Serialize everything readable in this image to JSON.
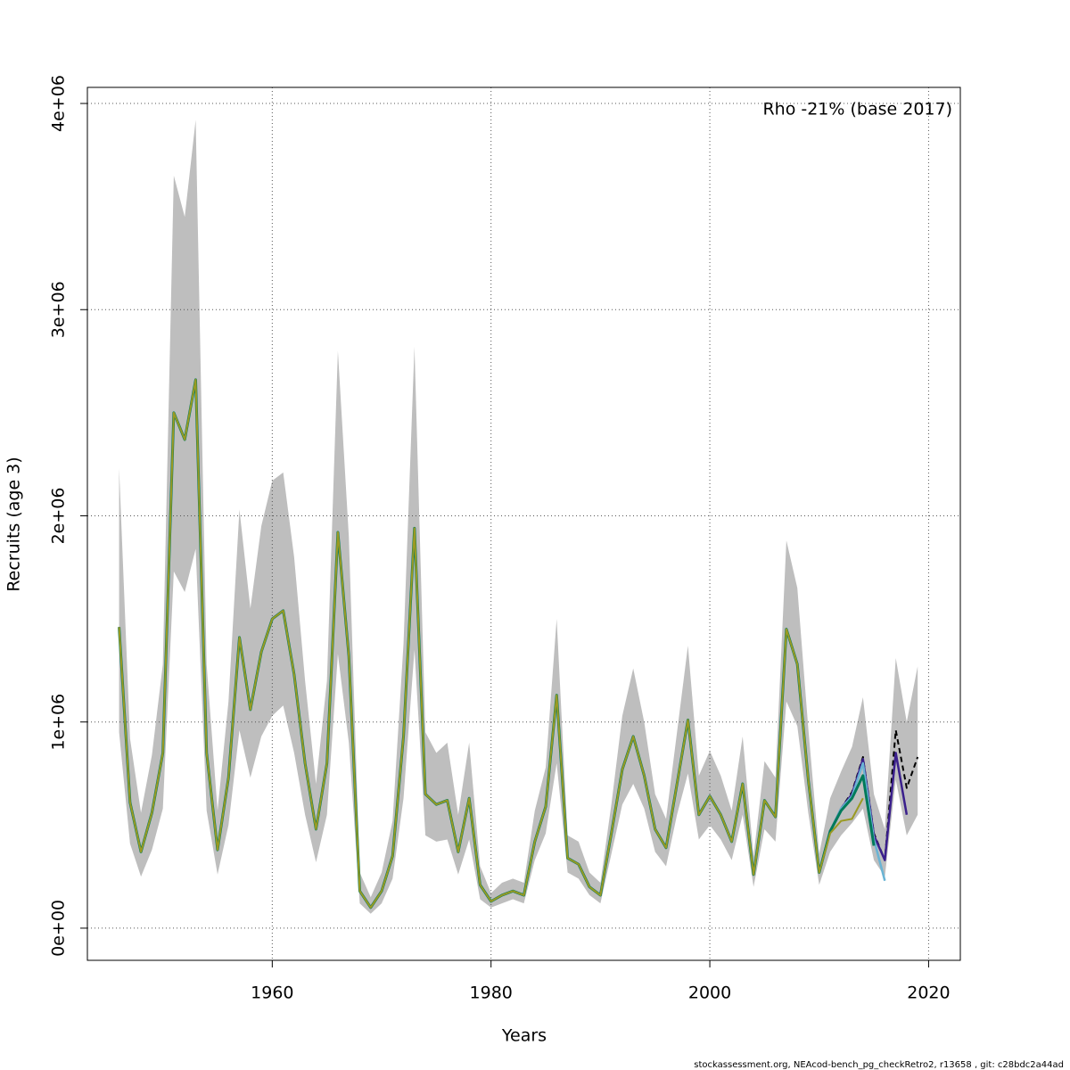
{
  "chart_data": {
    "type": "line",
    "ylabel": "Recruits (age 3)",
    "xlabel": "Years",
    "annotation": "Rho -21% (base 2017)",
    "footer": "stockassessment.org, NEAcod-bench_pg_checkRetro2, r13658 , git: c28bdc2a44ad",
    "grid": true,
    "xlim": [
      1943.1,
      2022.9
    ],
    "xticks": [
      1960,
      1980,
      2000,
      2020
    ],
    "ylim": [
      -156000,
      4078000
    ],
    "yticks": [
      {
        "value": 0,
        "label": "0e+00"
      },
      {
        "value": 1000000,
        "label": "1e+06"
      },
      {
        "value": 2000000,
        "label": "2e+06"
      },
      {
        "value": 3000000,
        "label": "3e+06"
      },
      {
        "value": 4000000,
        "label": "4e+06"
      }
    ],
    "x": [
      1946,
      1947,
      1948,
      1949,
      1950,
      1951,
      1952,
      1953,
      1954,
      1955,
      1956,
      1957,
      1958,
      1959,
      1960,
      1961,
      1962,
      1963,
      1964,
      1965,
      1966,
      1967,
      1968,
      1969,
      1970,
      1971,
      1972,
      1973,
      1974,
      1975,
      1976,
      1977,
      1978,
      1979,
      1980,
      1981,
      1982,
      1983,
      1984,
      1985,
      1986,
      1987,
      1988,
      1989,
      1990,
      1991,
      1992,
      1993,
      1994,
      1995,
      1996,
      1997,
      1998,
      1999,
      2000,
      2001,
      2002,
      2003,
      2004,
      2005,
      2006,
      2007,
      2008,
      2009,
      2010,
      2011,
      2012,
      2013,
      2014,
      2015,
      2016,
      2017,
      2018,
      2019
    ],
    "band": {
      "color": "#bebebe",
      "upper": [
        2230000,
        920000,
        560000,
        840000,
        1280000,
        3650000,
        3450000,
        3920000,
        1280000,
        570000,
        1100000,
        2030000,
        1550000,
        1950000,
        2170000,
        2210000,
        1800000,
        1200000,
        700000,
        1200000,
        2800000,
        1900000,
        270000,
        150000,
        270000,
        520000,
        1380000,
        2820000,
        950000,
        850000,
        900000,
        550000,
        900000,
        300000,
        170000,
        220000,
        240000,
        220000,
        570000,
        780000,
        1500000,
        450000,
        420000,
        270000,
        220000,
        600000,
        1030000,
        1260000,
        1000000,
        650000,
        530000,
        950000,
        1370000,
        740000,
        860000,
        740000,
        570000,
        930000,
        350000,
        810000,
        730000,
        1880000,
        1650000,
        970000,
        360000,
        630000,
        760000,
        880000,
        1120000,
        650000,
        480000,
        1310000,
        1000000,
        1270000
      ],
      "lower": [
        950000,
        410000,
        250000,
        380000,
        580000,
        1730000,
        1630000,
        1840000,
        570000,
        260000,
        500000,
        960000,
        730000,
        930000,
        1030000,
        1080000,
        850000,
        550000,
        320000,
        550000,
        1330000,
        900000,
        120000,
        70000,
        120000,
        240000,
        630000,
        1350000,
        450000,
        420000,
        430000,
        260000,
        430000,
        140000,
        100000,
        120000,
        140000,
        120000,
        330000,
        460000,
        800000,
        270000,
        240000,
        160000,
        120000,
        360000,
        600000,
        700000,
        580000,
        370000,
        300000,
        550000,
        750000,
        430000,
        500000,
        430000,
        330000,
        550000,
        200000,
        480000,
        420000,
        1100000,
        980000,
        560000,
        210000,
        370000,
        450000,
        510000,
        580000,
        330000,
        250000,
        720000,
        450000,
        550000
      ]
    },
    "series": [
      {
        "color": "#000000",
        "dashed": true,
        "width": 2,
        "values": [
          1460000,
          610000,
          370000,
          560000,
          850000,
          2500000,
          2370000,
          2660000,
          850000,
          380000,
          730000,
          1410000,
          1060000,
          1340000,
          1500000,
          1540000,
          1230000,
          800000,
          480000,
          800000,
          1920000,
          1320000,
          180000,
          100000,
          180000,
          350000,
          930000,
          1940000,
          650000,
          600000,
          620000,
          370000,
          630000,
          210000,
          130000,
          160000,
          180000,
          160000,
          420000,
          590000,
          1130000,
          340000,
          310000,
          200000,
          160000,
          460000,
          770000,
          930000,
          740000,
          480000,
          390000,
          700000,
          1010000,
          550000,
          640000,
          550000,
          420000,
          700000,
          260000,
          620000,
          540000,
          1450000,
          1280000,
          720000,
          270000,
          470000,
          580000,
          660000,
          830000,
          460000,
          330000,
          960000,
          680000,
          830000
        ]
      },
      {
        "color": "#3a1f8c",
        "dashed": false,
        "width": 2.5,
        "values": [
          null,
          null,
          null,
          null,
          null,
          null,
          null,
          null,
          null,
          null,
          null,
          null,
          null,
          null,
          null,
          null,
          null,
          null,
          null,
          null,
          null,
          null,
          null,
          null,
          null,
          null,
          null,
          null,
          null,
          null,
          null,
          null,
          null,
          null,
          null,
          null,
          null,
          null,
          null,
          null,
          null,
          null,
          null,
          null,
          null,
          null,
          null,
          null,
          null,
          null,
          null,
          null,
          null,
          null,
          null,
          null,
          null,
          null,
          null,
          null,
          null,
          null,
          null,
          null,
          270000,
          470000,
          580000,
          650000,
          820000,
          450000,
          330000,
          850000,
          550000,
          null
        ]
      },
      {
        "color": "#6ab4d4",
        "dashed": false,
        "width": 2.5,
        "values": [
          null,
          null,
          null,
          null,
          null,
          null,
          null,
          null,
          null,
          null,
          null,
          null,
          null,
          null,
          null,
          null,
          null,
          null,
          null,
          null,
          null,
          null,
          null,
          null,
          null,
          null,
          null,
          null,
          null,
          null,
          null,
          null,
          null,
          null,
          null,
          null,
          null,
          null,
          null,
          null,
          null,
          null,
          null,
          null,
          null,
          null,
          null,
          null,
          null,
          null,
          null,
          null,
          null,
          null,
          null,
          null,
          null,
          null,
          null,
          null,
          null,
          null,
          null,
          null,
          270000,
          470000,
          580000,
          640000,
          800000,
          430000,
          230000,
          null,
          null,
          null
        ]
      },
      {
        "color": "#007a5a",
        "dashed": false,
        "width": 3,
        "values": [
          1460000,
          610000,
          370000,
          560000,
          850000,
          2500000,
          2370000,
          2660000,
          850000,
          380000,
          730000,
          1410000,
          1060000,
          1340000,
          1500000,
          1540000,
          1230000,
          800000,
          480000,
          800000,
          1920000,
          1320000,
          180000,
          100000,
          180000,
          350000,
          930000,
          1940000,
          650000,
          600000,
          620000,
          370000,
          630000,
          210000,
          130000,
          160000,
          180000,
          160000,
          420000,
          590000,
          1130000,
          340000,
          310000,
          200000,
          160000,
          460000,
          770000,
          930000,
          740000,
          480000,
          390000,
          700000,
          1010000,
          550000,
          640000,
          550000,
          420000,
          700000,
          260000,
          620000,
          540000,
          1450000,
          1280000,
          720000,
          270000,
          470000,
          570000,
          630000,
          740000,
          400000,
          null,
          null,
          null,
          null
        ]
      },
      {
        "color": "#9a9a22",
        "dashed": false,
        "width": 2,
        "values": [
          1460000,
          610000,
          370000,
          560000,
          850000,
          2500000,
          2370000,
          2660000,
          850000,
          380000,
          730000,
          1410000,
          1060000,
          1340000,
          1500000,
          1540000,
          1230000,
          800000,
          480000,
          800000,
          1920000,
          1320000,
          180000,
          100000,
          180000,
          350000,
          930000,
          1940000,
          650000,
          600000,
          620000,
          370000,
          630000,
          210000,
          130000,
          160000,
          180000,
          160000,
          420000,
          590000,
          1130000,
          340000,
          310000,
          200000,
          160000,
          460000,
          770000,
          930000,
          740000,
          480000,
          390000,
          700000,
          1010000,
          550000,
          640000,
          550000,
          420000,
          700000,
          260000,
          620000,
          540000,
          1450000,
          1280000,
          720000,
          270000,
          460000,
          520000,
          530000,
          630000,
          null,
          null,
          null,
          null,
          null
        ]
      }
    ]
  }
}
